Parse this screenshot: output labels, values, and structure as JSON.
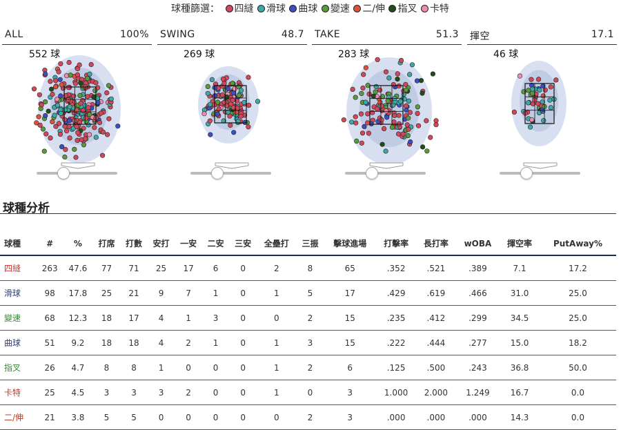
{
  "filter": {
    "title": "球種篩選：",
    "options": [
      {
        "label": "四縫",
        "color": "#d1485a"
      },
      {
        "label": "滑球",
        "color": "#3ea8a8"
      },
      {
        "label": "曲球",
        "color": "#3b4fc2"
      },
      {
        "label": "變速",
        "color": "#5a9a3a"
      },
      {
        "label": "二/伸",
        "color": "#e0533b"
      },
      {
        "label": "指叉",
        "color": "#1f4d1a"
      },
      {
        "label": "卡特",
        "color": "#f08cb0"
      }
    ]
  },
  "panels": [
    {
      "label": "ALL",
      "pct": "100%",
      "count": "552 球"
    },
    {
      "label": "SWING",
      "pct": "48.7",
      "count": "269 球"
    },
    {
      "label": "TAKE",
      "pct": "51.3",
      "count": "283 球"
    },
    {
      "label": "揮空",
      "pct": "17.1",
      "count": "46 球"
    }
  ],
  "analysis": {
    "title": "球種分析",
    "headers": [
      "球種",
      "#",
      "%",
      "打席",
      "打數",
      "安打",
      "一安",
      "二安",
      "三安",
      "全壘打",
      "三振",
      "擊球進場",
      "打擊率",
      "長打率",
      "wOBA",
      "揮空率",
      "PutAway%"
    ],
    "rows": [
      {
        "pitch": "四縫",
        "color": "#c0392b",
        "cells": [
          "263",
          "47.6",
          "77",
          "71",
          "25",
          "17",
          "6",
          "0",
          "2",
          "8",
          "65",
          ".352",
          ".521",
          ".389",
          "7.1",
          "17.2"
        ]
      },
      {
        "pitch": "滑球",
        "color": "#2c3e7a",
        "cells": [
          "98",
          "17.8",
          "25",
          "21",
          "9",
          "7",
          "1",
          "0",
          "1",
          "5",
          "17",
          ".429",
          ".619",
          ".466",
          "31.0",
          "25.0"
        ]
      },
      {
        "pitch": "變速",
        "color": "#3a8a3a",
        "cells": [
          "68",
          "12.3",
          "18",
          "17",
          "4",
          "1",
          "3",
          "0",
          "0",
          "2",
          "15",
          ".235",
          ".412",
          ".299",
          "34.5",
          "25.0"
        ]
      },
      {
        "pitch": "曲球",
        "color": "#2c3e7a",
        "cells": [
          "51",
          "9.2",
          "18",
          "18",
          "4",
          "2",
          "1",
          "0",
          "1",
          "3",
          "15",
          ".222",
          ".444",
          ".277",
          "15.0",
          "18.2"
        ]
      },
      {
        "pitch": "指叉",
        "color": "#3a8a3a",
        "cells": [
          "26",
          "4.7",
          "8",
          "8",
          "1",
          "0",
          "0",
          "0",
          "1",
          "2",
          "6",
          ".125",
          ".500",
          ".243",
          "36.8",
          "50.0"
        ]
      },
      {
        "pitch": "卡特",
        "color": "#c0392b",
        "cells": [
          "25",
          "4.5",
          "3",
          "3",
          "3",
          "2",
          "0",
          "0",
          "1",
          "0",
          "3",
          "1.000",
          "2.000",
          "1.249",
          "16.7",
          "0.0"
        ]
      },
      {
        "pitch": "二/伸",
        "color": "#c0392b",
        "cells": [
          "21",
          "3.8",
          "5",
          "5",
          "0",
          "0",
          "0",
          "0",
          "0",
          "2",
          "3",
          ".000",
          ".000",
          ".000",
          "14.3",
          "0.0"
        ]
      }
    ]
  }
}
